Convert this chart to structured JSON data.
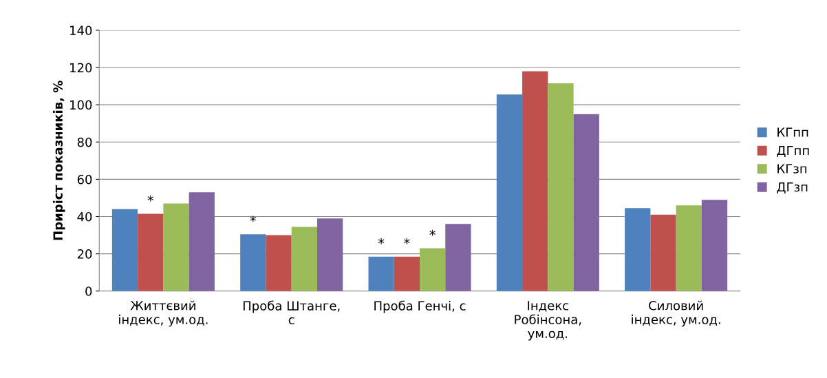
{
  "chart_data": {
    "type": "bar",
    "ylabel": "Приріст показників, %",
    "categories": [
      "Життєвий\nіндекс, ум.од.",
      "Проба Штанге,\nс",
      "Проба Генчі, с",
      "Індекс\nРобінсона,\nум.од.",
      "Силовий\nіндекс, ум.од."
    ],
    "series": [
      {
        "name": "КГпп",
        "color": "#4f81bd",
        "values": [
          44,
          30.5,
          18.5,
          105.5,
          44.5
        ],
        "value_labels": [
          null,
          "*",
          "*",
          null,
          null
        ]
      },
      {
        "name": "ДГпп",
        "color": "#c0504d",
        "values": [
          41.5,
          30,
          18.5,
          118,
          41
        ],
        "value_labels": [
          "*",
          null,
          "*",
          null,
          null
        ]
      },
      {
        "name": "КГзп",
        "color": "#9bbb59",
        "values": [
          47,
          34.5,
          23,
          111.5,
          46
        ],
        "value_labels": [
          null,
          null,
          "*",
          null,
          null
        ]
      },
      {
        "name": "ДГзп",
        "color": "#8064a2",
        "values": [
          53,
          39,
          36,
          95,
          49
        ]
      }
    ],
    "ylim": [
      0,
      140
    ],
    "yticks": [
      0,
      20,
      40,
      60,
      80,
      100,
      120,
      140
    ],
    "grid": "y",
    "legend": "right"
  }
}
